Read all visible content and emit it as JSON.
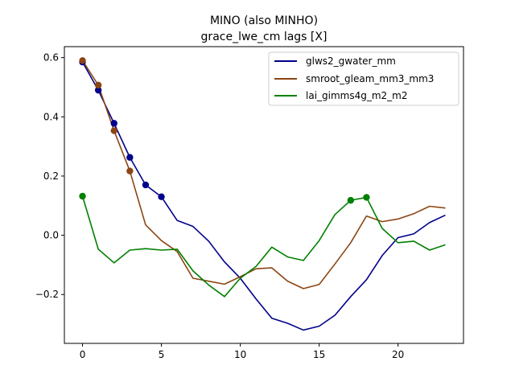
{
  "chart_data": {
    "type": "line",
    "title": "MINO (also MINHO)",
    "subtitle": "grace_lwe_cm lags [X]",
    "xlabel": "",
    "ylabel": "",
    "xlim": [
      -1.15,
      24.15
    ],
    "ylim": [
      -0.365,
      0.637
    ],
    "xticks": [
      0,
      5,
      10,
      15,
      20
    ],
    "yticks": [
      -0.2,
      0.0,
      0.2,
      0.4,
      0.6
    ],
    "ytick_labels": [
      "−0.2",
      "0.0",
      "0.2",
      "0.4",
      "0.6"
    ],
    "grid": false,
    "legend_position": "top-right",
    "x": [
      0,
      1,
      2,
      3,
      4,
      5,
      6,
      7,
      8,
      9,
      10,
      11,
      12,
      13,
      14,
      15,
      16,
      17,
      18,
      19,
      20,
      21,
      22,
      23
    ],
    "series": [
      {
        "name": "glws2_gwater_mm",
        "color": "#00008b",
        "values": [
          0.585,
          0.49,
          0.378,
          0.263,
          0.17,
          0.13,
          0.05,
          0.03,
          -0.02,
          -0.09,
          -0.145,
          -0.215,
          -0.28,
          -0.297,
          -0.32,
          -0.307,
          -0.27,
          -0.207,
          -0.15,
          -0.068,
          -0.008,
          0.005,
          0.043,
          0.068
        ],
        "markers": [
          0,
          1,
          2,
          3,
          4,
          5
        ]
      },
      {
        "name": "smroot_gleam_mm3_mm3",
        "color": "#8b4513",
        "values": [
          0.59,
          0.507,
          0.353,
          0.217,
          0.035,
          -0.018,
          -0.055,
          -0.145,
          -0.155,
          -0.165,
          -0.14,
          -0.113,
          -0.11,
          -0.155,
          -0.18,
          -0.166,
          -0.097,
          -0.025,
          0.065,
          0.046,
          0.055,
          0.073,
          0.098,
          0.092
        ],
        "markers": [
          0,
          1,
          2,
          3
        ]
      },
      {
        "name": "lai_gimms4g_m2_m2",
        "color": "#008000",
        "values": [
          0.132,
          -0.047,
          -0.093,
          -0.05,
          -0.045,
          -0.05,
          -0.047,
          -0.12,
          -0.168,
          -0.207,
          -0.145,
          -0.105,
          -0.04,
          -0.073,
          -0.085,
          -0.018,
          0.07,
          0.118,
          0.128,
          0.023,
          -0.025,
          -0.02,
          -0.05,
          -0.032
        ],
        "markers": [
          0,
          17,
          18
        ]
      }
    ]
  }
}
